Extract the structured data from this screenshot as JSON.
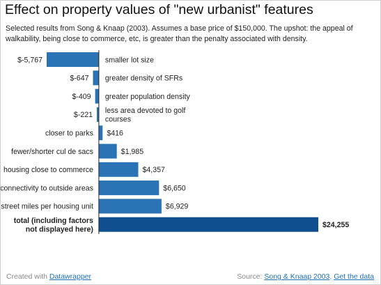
{
  "header": {
    "title": "Effect on property values of \"new urbanist\" features",
    "intro": "Selected results from Song & Knaap (2003). Assumes a base price of $150,000. The upshot: the appeal of walkability, being close to commerce, etc, is greater than the penalty associated with density."
  },
  "footer": {
    "created_with": "Created with",
    "created_link": "Datawrapper",
    "source_label": "Source:",
    "source_link": "Song & Knaap 2003",
    "get_data": "Get the data"
  },
  "colors": {
    "bar": "#2a74b6",
    "bar_total": "#0f4f8f",
    "axis": "#222222"
  },
  "chart_data": {
    "type": "bar",
    "orientation": "horizontal",
    "categories": [
      "smaller lot size",
      "greater density of SFRs",
      "greater population density",
      "less area devoted to golf courses",
      "closer to parks",
      "fewer/shorter cul de sacs",
      "housing close to commerce",
      "better connectivity to outside areas",
      "street miles per housing unit",
      "total (including factors not displayed here)"
    ],
    "values": [
      -5767,
      -647,
      -409,
      -221,
      416,
      1985,
      4357,
      6650,
      6929,
      24255
    ],
    "value_labels": [
      "$-5,767",
      "$-647",
      "$-409",
      "$-221",
      "$416",
      "$1,985",
      "$4,357",
      "$6,650",
      "$6,929",
      "$24,255"
    ],
    "highlight": [
      false,
      false,
      false,
      false,
      false,
      false,
      false,
      false,
      false,
      true
    ],
    "xlim": [
      -5767,
      24255
    ],
    "title": "Effect on property values of \"new urbanist\" features",
    "xlabel": "",
    "ylabel": "",
    "grid": false
  }
}
